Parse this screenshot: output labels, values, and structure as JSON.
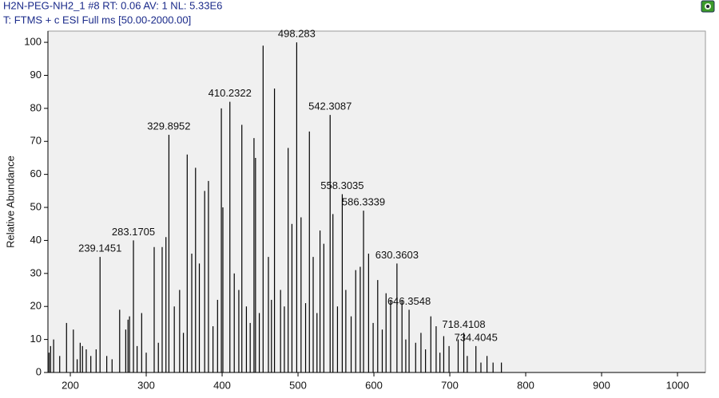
{
  "chart_data": {
    "type": "stick",
    "title": "H2N-PEG-NH2_1 #8  RT: 0.06  AV: 1  NL: 5.33E6",
    "subtitle": "T: FTMS + c ESI Full ms [50.00-2000.00]",
    "y_label": "Relative Abundance",
    "color": "#000000",
    "xlim": [
      170.5,
      1036.8
    ],
    "ylim": [
      0,
      103.4
    ],
    "xticks": [
      200,
      300,
      400,
      500,
      600,
      700,
      800,
      900,
      1000
    ],
    "yticks": [
      0,
      10,
      20,
      30,
      40,
      50,
      60,
      70,
      80,
      90,
      100
    ],
    "x": [
      172,
      174,
      178,
      186,
      195,
      204,
      209,
      213,
      216,
      221,
      227,
      234,
      248,
      255,
      265,
      273,
      276,
      278,
      288,
      294,
      300,
      310.5,
      316,
      321,
      326,
      337,
      344,
      349,
      354,
      360,
      365,
      370,
      377,
      382,
      388,
      394,
      399,
      401,
      416,
      422,
      426,
      432,
      437,
      442,
      444,
      449,
      454,
      461,
      465,
      469,
      477,
      482,
      487,
      492,
      504,
      510,
      515,
      520,
      525,
      529,
      534,
      546,
      552,
      563,
      570,
      576,
      582,
      593,
      599,
      605,
      611,
      616,
      622,
      637,
      642,
      655,
      662,
      668,
      675,
      682,
      687,
      692,
      699,
      711,
      723,
      741,
      749,
      757,
      768
    ],
    "values": [
      6,
      8,
      10,
      5,
      15,
      13,
      4,
      9,
      8,
      7,
      5,
      7,
      5,
      4,
      19,
      13,
      16,
      17,
      8,
      18,
      6,
      38,
      9,
      38,
      41,
      20,
      25,
      12,
      66,
      36,
      62,
      33,
      55,
      58,
      14,
      22,
      80,
      50,
      30,
      25,
      75,
      20,
      15,
      71,
      65,
      18,
      99,
      35,
      22,
      86,
      25,
      20,
      68,
      45,
      47,
      21,
      73,
      35,
      18,
      43,
      39,
      48,
      20,
      25,
      17,
      31,
      32,
      36,
      15,
      28,
      13,
      24,
      22,
      22,
      10,
      9,
      12,
      7,
      17,
      14,
      6,
      11,
      8,
      10,
      5,
      3,
      5,
      3,
      3
    ],
    "annotations": [
      {
        "x": 239.1451,
        "y": 35
      },
      {
        "x": 283.1705,
        "y": 40
      },
      {
        "x": 329.8952,
        "y": 72
      },
      {
        "x": 410.2322,
        "y": 82
      },
      {
        "x": 498.283,
        "y": 100
      },
      {
        "x": 542.3087,
        "y": 78
      },
      {
        "x": 558.3035,
        "y": 54
      },
      {
        "x": 586.3339,
        "y": 49
      },
      {
        "x": 630.3603,
        "y": 33
      },
      {
        "x": 646.3548,
        "y": 19
      },
      {
        "x": 718.4108,
        "y": 12
      },
      {
        "x": 734.4045,
        "y": 8
      }
    ]
  }
}
